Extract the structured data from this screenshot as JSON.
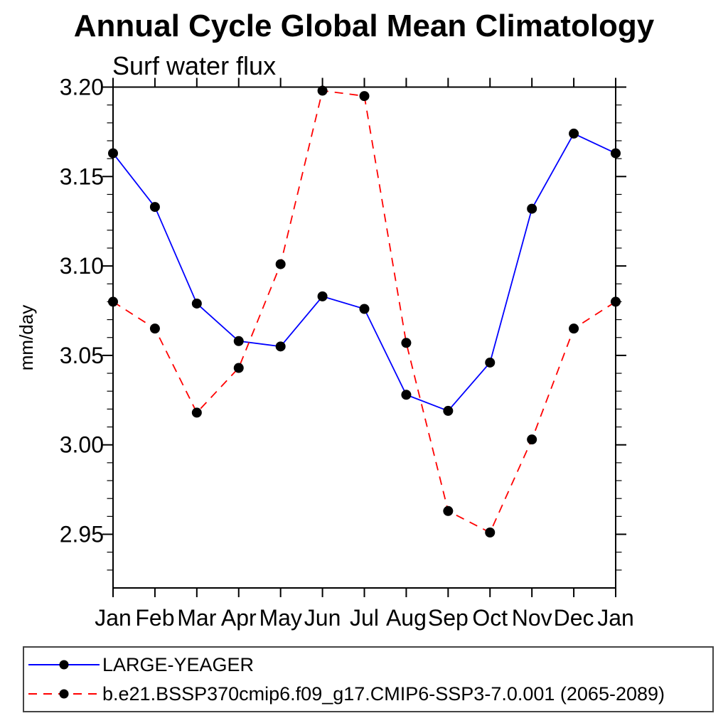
{
  "title": "Annual Cycle Global Mean Climatology",
  "subtitle": "Surf water flux",
  "ylabel": "mm/day",
  "legend": {
    "marker_color": "#000000",
    "entries": [
      {
        "label": "LARGE-YEAGER",
        "color": "#0000ff",
        "style": "solid",
        "dash": "none"
      },
      {
        "label": "b.e21.BSSP370cmip6.f09_g17.CMIP6-SSP3-7.0.001 (2065-2089)",
        "color": "#ff0000",
        "style": "dashed",
        "dash": "12,9"
      }
    ]
  },
  "chart_data": {
    "type": "line",
    "title": "Annual Cycle Global Mean Climatology",
    "subtitle": "Surf water flux",
    "xlabel": "",
    "ylabel": "mm/day",
    "categories": [
      "Jan",
      "Feb",
      "Mar",
      "Apr",
      "May",
      "Jun",
      "Jul",
      "Aug",
      "Sep",
      "Oct",
      "Nov",
      "Dec",
      "Jan"
    ],
    "series": [
      {
        "name": "LARGE-YEAGER",
        "color": "#0000ff",
        "line_style": "solid",
        "marker": "circle",
        "marker_color": "#000000",
        "values": [
          3.163,
          3.133,
          3.079,
          3.058,
          3.055,
          3.083,
          3.076,
          3.028,
          3.019,
          3.046,
          3.132,
          3.174,
          3.163
        ]
      },
      {
        "name": "b.e21.BSSP370cmip6.f09_g17.CMIP6-SSP3-7.0.001 (2065-2089)",
        "color": "#ff0000",
        "line_style": "dashed",
        "marker": "circle",
        "marker_color": "#000000",
        "values": [
          3.08,
          3.065,
          3.018,
          3.043,
          3.101,
          3.198,
          3.195,
          3.057,
          2.963,
          2.951,
          3.003,
          3.065,
          3.08
        ]
      }
    ],
    "ylim": [
      2.92,
      3.2
    ],
    "ytick_labels": [
      "2.95",
      "3.00",
      "3.05",
      "3.10",
      "3.15",
      "3.20"
    ],
    "ytick_step": 0.05,
    "ytick_minor_step": 0.01,
    "grid": false,
    "legend_position": "bottom"
  }
}
